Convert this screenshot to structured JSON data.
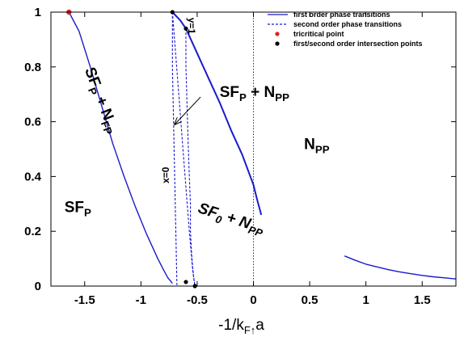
{
  "chart_data": {
    "type": "line",
    "xlabel": "-1/k",
    "xlabel_sub": "F↑",
    "xlabel_tail": "a",
    "xlim": [
      -1.8,
      1.8
    ],
    "ylim": [
      0,
      1
    ],
    "x_ticks": [
      "-1.5",
      "-1",
      "-0.5",
      "0",
      "0.5",
      "1",
      "1.5"
    ],
    "x_tick_values": [
      -1.5,
      -1,
      -0.5,
      0,
      0.5,
      1,
      1.5
    ],
    "y_ticks": [
      "0",
      "0.2",
      "0.4",
      "0.6",
      "0.8",
      "1"
    ],
    "y_tick_values": [
      0,
      0.2,
      0.4,
      0.6,
      0.8,
      1
    ],
    "legend": {
      "position": "top-right",
      "first_order": "first order phase transitions",
      "second_order": "second order phase transitions",
      "tricritical": "tricritical point",
      "intersection": "first/second order intersection points"
    },
    "colors": {
      "line": "#1a1acc",
      "tricritical": "#e0201c",
      "intersection": "#000000"
    },
    "series": [
      {
        "kind": "first-order",
        "x": [
          -1.64,
          -1.55,
          -1.45,
          -1.35,
          -1.25,
          -1.15,
          -1.05,
          -0.95,
          -0.85,
          -0.8,
          -0.76,
          -0.72
        ],
        "y": [
          1.0,
          0.93,
          0.8,
          0.66,
          0.52,
          0.4,
          0.29,
          0.19,
          0.1,
          0.06,
          0.03,
          0.01
        ]
      },
      {
        "kind": "first-order",
        "x": [
          -0.72,
          -0.65,
          -0.6,
          -0.5,
          -0.4,
          -0.3,
          -0.2,
          -0.1,
          0.0,
          0.03,
          0.07
        ],
        "y": [
          1.0,
          0.97,
          0.94,
          0.85,
          0.76,
          0.67,
          0.57,
          0.48,
          0.37,
          0.32,
          0.26
        ]
      },
      {
        "kind": "first-order",
        "x": [
          0.81,
          0.9,
          1.0,
          1.1,
          1.2,
          1.3,
          1.4,
          1.5,
          1.6,
          1.7,
          1.8
        ],
        "y": [
          0.11,
          0.095,
          0.08,
          0.07,
          0.06,
          0.052,
          0.045,
          0.039,
          0.034,
          0.03,
          0.026
        ]
      },
      {
        "kind": "second-order",
        "x": [
          -0.72,
          -0.72,
          -0.71,
          -0.7,
          -0.69,
          -0.68
        ],
        "y": [
          1.0,
          0.8,
          0.6,
          0.4,
          0.2,
          0.0
        ]
      },
      {
        "kind": "second-order",
        "x": [
          -0.72,
          -0.69,
          -0.66,
          -0.63,
          -0.6,
          -0.57,
          -0.54,
          -0.52
        ],
        "y": [
          1.0,
          0.84,
          0.68,
          0.52,
          0.36,
          0.2,
          0.06,
          0.0
        ]
      },
      {
        "kind": "second-order",
        "x": [
          -0.6,
          -0.6,
          -0.59,
          -0.58,
          -0.57,
          -0.56,
          -0.56,
          -0.55,
          -0.54,
          -0.53,
          -0.52
        ],
        "y": [
          0.94,
          0.8,
          0.66,
          0.52,
          0.4,
          0.3,
          0.2,
          0.12,
          0.07,
          0.03,
          0.0
        ]
      }
    ],
    "points": [
      {
        "kind": "tricritical",
        "x": -1.64,
        "y": 1.0
      },
      {
        "kind": "intersection",
        "x": -0.72,
        "y": 1.0
      },
      {
        "kind": "intersection",
        "x": -0.6,
        "y": 0.94
      },
      {
        "kind": "intersection",
        "x": -0.6,
        "y": 0.015
      },
      {
        "kind": "intersection",
        "x": -0.52,
        "y": 0.0
      }
    ],
    "vertical_line_x": 0,
    "region_labels": [
      {
        "text": "SF",
        "sub": "P",
        "tail": " + N",
        "sub2": "FP",
        "x": -1.5,
        "y": 0.79,
        "rotate": 69,
        "size": 19,
        "italic": false
      },
      {
        "text": "SF",
        "sub": "P",
        "tail": " + N",
        "sub2": "PP",
        "x": -0.3,
        "y": 0.69,
        "rotate": 0,
        "size": 19,
        "italic": false
      },
      {
        "text": "N",
        "sub": "PP",
        "tail": "",
        "sub2": "",
        "x": 0.45,
        "y": 0.5,
        "rotate": 0,
        "size": 19,
        "italic": false
      },
      {
        "text": "SF",
        "sub": "P",
        "tail": "",
        "sub2": "",
        "x": -1.68,
        "y": 0.27,
        "rotate": 0,
        "size": 19,
        "italic": false
      },
      {
        "text": "SF",
        "sub": "0",
        "tail": " + N",
        "sub2": "PP",
        "x": -0.5,
        "y": 0.27,
        "rotate": 18,
        "size": 19,
        "italic": true
      }
    ],
    "curve_labels": [
      {
        "text": "x=0",
        "x": -0.75,
        "y": 0.405,
        "rotate": -90
      },
      {
        "text": "y=1",
        "x": -0.58,
        "y": 0.95,
        "rotate": 90
      }
    ],
    "arrow": {
      "from": [
        -0.47,
        0.69
      ],
      "to": [
        -0.7,
        0.59
      ]
    }
  }
}
